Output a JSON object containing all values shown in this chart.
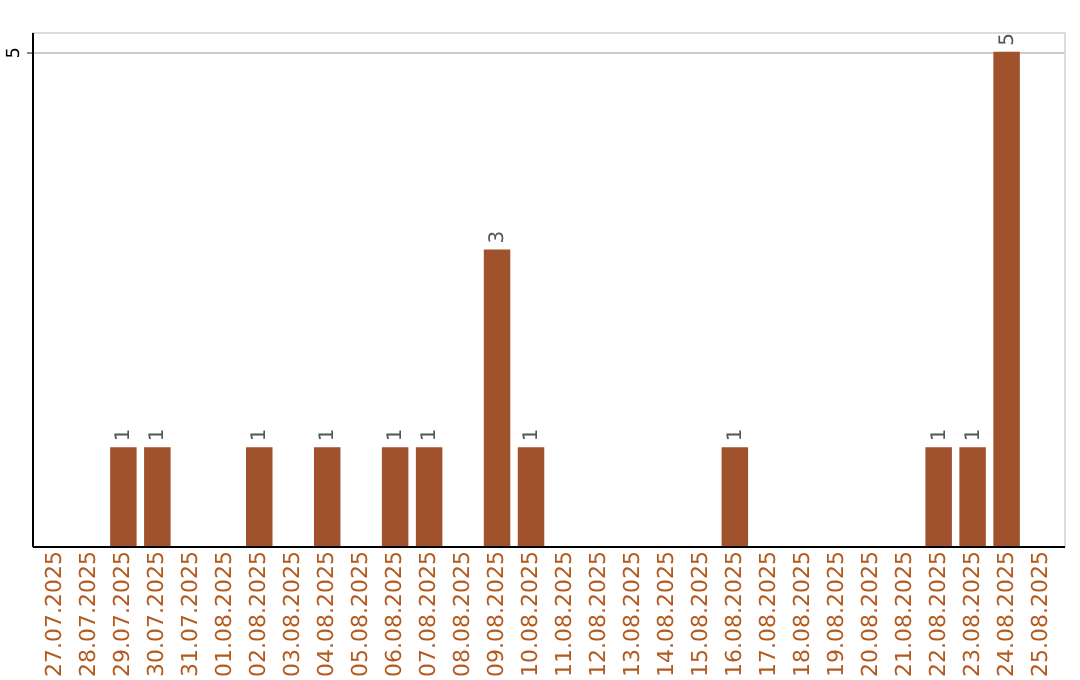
{
  "chart_data": {
    "type": "bar",
    "categories": [
      "27.07.2025",
      "28.07.2025",
      "29.07.2025",
      "30.07.2025",
      "31.07.2025",
      "01.08.2025",
      "02.08.2025",
      "03.08.2025",
      "04.08.2025",
      "05.08.2025",
      "06.08.2025",
      "07.08.2025",
      "08.08.2025",
      "09.08.2025",
      "10.08.2025",
      "11.08.2025",
      "12.08.2025",
      "13.08.2025",
      "14.08.2025",
      "15.08.2025",
      "16.08.2025",
      "17.08.2025",
      "18.08.2025",
      "19.08.2025",
      "20.08.2025",
      "21.08.2025",
      "22.08.2025",
      "23.08.2025",
      "24.08.2025",
      "25.08.2025"
    ],
    "values": [
      0,
      0,
      1,
      1,
      0,
      0,
      1,
      0,
      1,
      0,
      1,
      1,
      0,
      3,
      1,
      0,
      0,
      0,
      0,
      0,
      1,
      0,
      0,
      0,
      0,
      0,
      1,
      1,
      5,
      0
    ],
    "value_labels": [
      null,
      null,
      "1",
      "1",
      null,
      null,
      "1",
      null,
      "1",
      null,
      "1",
      "1",
      null,
      "3",
      "1",
      null,
      null,
      null,
      null,
      null,
      "1",
      null,
      null,
      null,
      null,
      null,
      "1",
      "1",
      "5",
      null
    ],
    "color": "#a0522d",
    "ylim": [
      0,
      5.2
    ],
    "yticks": [
      5
    ],
    "grid": "y"
  }
}
